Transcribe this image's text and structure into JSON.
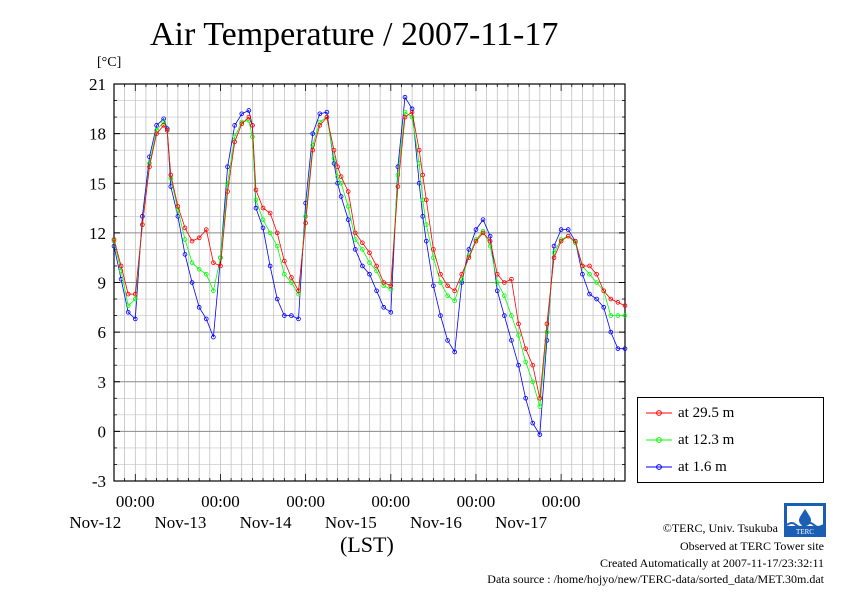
{
  "header": {
    "title": "Air Temperature / 2007-11-17",
    "unit": "[°C]"
  },
  "chart_data": {
    "type": "line",
    "title": "Air Temperature / 2007-11-17",
    "ylabel": "[°C]",
    "xlabel": "(LST)",
    "ylim": [
      -3,
      21
    ],
    "yticks": [
      -3,
      0,
      3,
      6,
      9,
      12,
      15,
      18,
      21
    ],
    "x_unit": "hours since 2007-11-11 18:00 LST",
    "xlim": [
      0,
      144
    ],
    "xtick_labels": [
      {
        "time": "00:00",
        "date": "Nov-12"
      },
      {
        "time": "00:00",
        "date": "Nov-13"
      },
      {
        "time": "00:00",
        "date": "Nov-14"
      },
      {
        "time": "00:00",
        "date": "Nov-15"
      },
      {
        "time": "00:00",
        "date": "Nov-16"
      },
      {
        "time": "00:00",
        "date": "Nov-17"
      }
    ],
    "grid": true,
    "legend_position": "bottom-right",
    "colors": {
      "s29": "#ff0000",
      "s12": "#00ff00",
      "s1": "#0000ff"
    },
    "series": [
      {
        "name": "at 29.5 m",
        "color": "#ff0000",
        "x": [
          0,
          2,
          4,
          6,
          8,
          10,
          12,
          14,
          15,
          16,
          18,
          20,
          22,
          24,
          26,
          28,
          30,
          32,
          34,
          36,
          38,
          39,
          40,
          42,
          44,
          46,
          48,
          50,
          52,
          54,
          56,
          58,
          60,
          62,
          63,
          64,
          66,
          68,
          70,
          72,
          74,
          76,
          78,
          80,
          82,
          84,
          86,
          87,
          88,
          90,
          92,
          94,
          96,
          98,
          100,
          102,
          104,
          106,
          108,
          110,
          112,
          114,
          116,
          118,
          120,
          122,
          124,
          126,
          128,
          130,
          132,
          134,
          136,
          138,
          140,
          142,
          144
        ],
        "y": [
          11.6,
          10.0,
          8.3,
          8.3,
          12.5,
          16.0,
          18.0,
          18.5,
          18.2,
          15.5,
          13.6,
          12.3,
          11.5,
          11.7,
          12.2,
          10.2,
          10.0,
          14.5,
          17.5,
          18.6,
          19.0,
          18.5,
          14.6,
          13.5,
          13.2,
          12.0,
          10.3,
          9.3,
          8.5,
          12.6,
          17.0,
          18.5,
          19.0,
          17.0,
          16.0,
          15.4,
          14.5,
          12.0,
          11.4,
          10.8,
          10.0,
          9.0,
          8.8,
          14.8,
          19.0,
          19.3,
          17.0,
          15.5,
          14.0,
          11.0,
          9.5,
          8.8,
          8.5,
          9.5,
          10.5,
          11.5,
          12.0,
          11.5,
          9.5,
          9.0,
          9.2,
          6.5,
          5.0,
          4.0,
          2.0,
          6.5,
          10.5,
          11.5,
          11.8,
          11.5,
          10.0,
          10.0,
          9.5,
          8.5,
          8.0,
          7.8,
          7.6
        ]
      },
      {
        "name": "at 12.3 m",
        "color": "#00ff00",
        "x": [
          0,
          2,
          4,
          6,
          8,
          10,
          12,
          14,
          15,
          16,
          18,
          20,
          22,
          24,
          26,
          28,
          30,
          32,
          34,
          36,
          38,
          39,
          40,
          42,
          44,
          46,
          48,
          50,
          52,
          54,
          56,
          58,
          60,
          62,
          63,
          64,
          66,
          68,
          70,
          72,
          74,
          76,
          78,
          80,
          82,
          84,
          86,
          87,
          88,
          90,
          92,
          94,
          96,
          98,
          100,
          102,
          104,
          106,
          108,
          110,
          112,
          114,
          116,
          118,
          120,
          122,
          124,
          126,
          128,
          130,
          132,
          134,
          136,
          138,
          140,
          142,
          144
        ],
        "y": [
          11.5,
          9.7,
          7.6,
          8.0,
          12.5,
          16.2,
          18.2,
          18.7,
          18.2,
          15.3,
          13.4,
          11.6,
          10.2,
          9.8,
          9.5,
          8.5,
          10.5,
          15.0,
          17.8,
          18.7,
          18.8,
          17.8,
          14.0,
          12.8,
          12.0,
          11.2,
          9.5,
          9.0,
          8.3,
          13.0,
          17.3,
          18.7,
          19.0,
          16.5,
          15.4,
          15.0,
          13.6,
          11.6,
          11.0,
          10.2,
          9.7,
          8.8,
          8.6,
          15.5,
          19.3,
          19.0,
          16.2,
          14.0,
          12.5,
          10.5,
          9.0,
          8.2,
          7.9,
          9.2,
          10.6,
          11.6,
          12.1,
          11.2,
          9.0,
          8.2,
          7.0,
          5.8,
          4.2,
          3.0,
          1.5,
          6.0,
          10.8,
          11.6,
          11.8,
          11.4,
          10.0,
          9.5,
          9.0,
          8.5,
          7.0,
          7.0,
          7.0
        ]
      },
      {
        "name": "at 1.6 m",
        "color": "#0000ff",
        "x": [
          0,
          2,
          4,
          6,
          8,
          10,
          12,
          14,
          15,
          16,
          18,
          20,
          22,
          24,
          26,
          28,
          30,
          32,
          34,
          36,
          38,
          39,
          40,
          42,
          44,
          46,
          48,
          50,
          52,
          54,
          56,
          58,
          60,
          62,
          63,
          64,
          66,
          68,
          70,
          72,
          74,
          76,
          78,
          80,
          82,
          84,
          86,
          87,
          88,
          90,
          92,
          94,
          96,
          98,
          100,
          102,
          104,
          106,
          108,
          110,
          112,
          114,
          116,
          118,
          120,
          122,
          124,
          126,
          128,
          130,
          132,
          134,
          136,
          138,
          140,
          142,
          144
        ],
        "y": [
          11.2,
          9.2,
          7.2,
          6.8,
          13.0,
          16.6,
          18.5,
          18.9,
          18.3,
          14.8,
          13.0,
          10.7,
          9.0,
          7.5,
          6.8,
          5.7,
          10.5,
          16.0,
          18.5,
          19.2,
          19.4,
          18.5,
          13.5,
          12.3,
          10.0,
          8.0,
          7.0,
          7.0,
          6.8,
          13.8,
          18.0,
          19.2,
          19.3,
          16.2,
          15.0,
          14.2,
          12.8,
          11.0,
          10.0,
          9.5,
          8.5,
          7.5,
          7.2,
          16.0,
          20.2,
          19.5,
          15.0,
          13.0,
          11.5,
          8.8,
          7.0,
          5.5,
          4.8,
          9.0,
          11.0,
          12.2,
          12.8,
          11.8,
          8.5,
          7.0,
          5.5,
          4.0,
          2.0,
          0.5,
          -0.2,
          5.5,
          11.2,
          12.2,
          12.2,
          11.5,
          9.5,
          8.3,
          8.0,
          7.5,
          6.0,
          5.0,
          5.0
        ]
      }
    ]
  },
  "legend": {
    "items": [
      {
        "label": "at 29.5 m"
      },
      {
        "label": "at 12.3 m"
      },
      {
        "label": "at 1.6 m"
      }
    ]
  },
  "footer": {
    "xlabel": "(LST)",
    "copyright": "©TERC, Univ. Tsukuba",
    "observed": "Observed at TERC Tower site",
    "created": "Created Automatically at 2007-11-17/23:32:11",
    "source": "Data source : /home/hojyo/new/TERC-data/sorted_data/MET.30m.dat",
    "logo_text": "TERC"
  }
}
